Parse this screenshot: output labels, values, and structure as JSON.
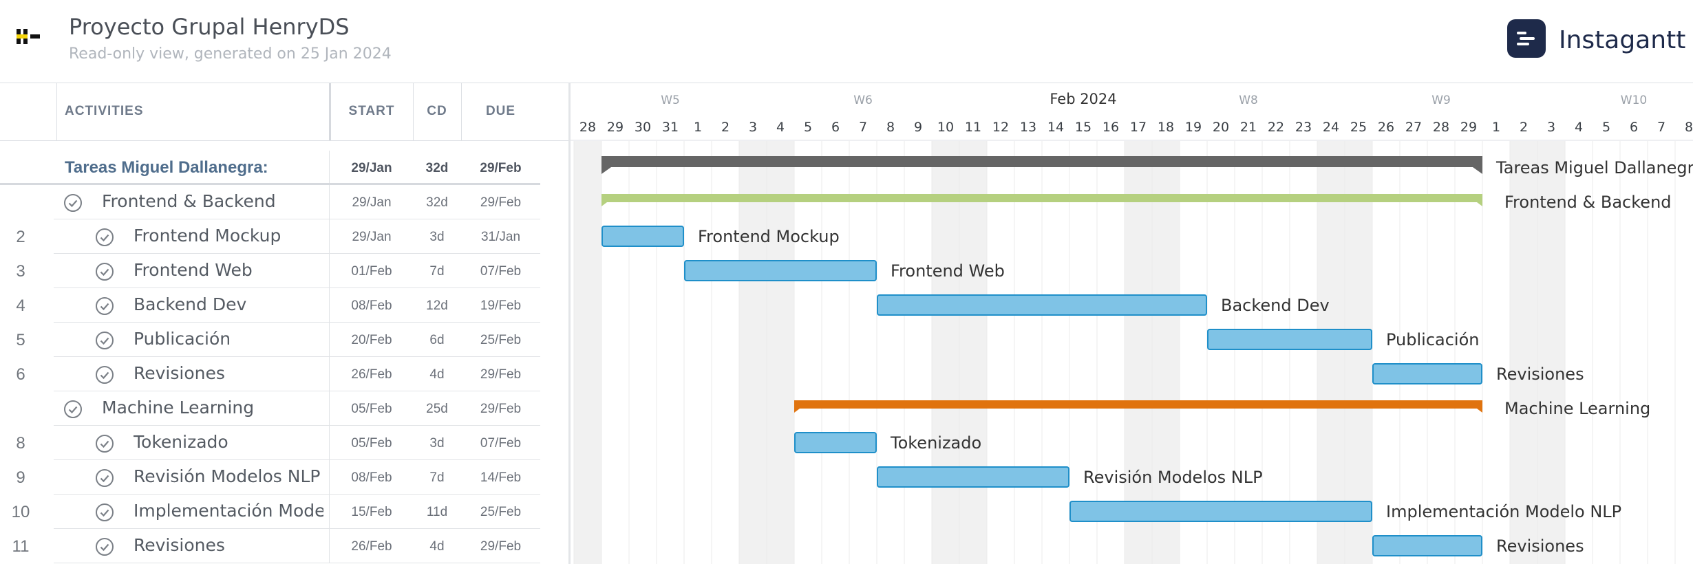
{
  "project": {
    "title": "Proyecto Grupal HenryDS",
    "subtitle": "Read-only view, generated on 25 Jan 2024"
  },
  "brand": {
    "name": "Instagantt"
  },
  "table": {
    "columns": [
      "ACTIVITIES",
      "START",
      "CD",
      "DUE"
    ],
    "rows": [
      {
        "num": "",
        "name": "Tareas Miguel Dallanegra:",
        "start": "29/Jan",
        "cd": "32d",
        "due": "29/Feb",
        "level": 0,
        "type": "group"
      },
      {
        "num": "",
        "name": "Frontend & Backend",
        "start": "29/Jan",
        "cd": "32d",
        "due": "29/Feb",
        "level": 1,
        "type": "subgroup"
      },
      {
        "num": "2",
        "name": "Frontend Mockup",
        "start": "29/Jan",
        "cd": "3d",
        "due": "31/Jan",
        "level": 2,
        "type": "task"
      },
      {
        "num": "3",
        "name": "Frontend Web",
        "start": "01/Feb",
        "cd": "7d",
        "due": "07/Feb",
        "level": 2,
        "type": "task"
      },
      {
        "num": "4",
        "name": "Backend Dev",
        "start": "08/Feb",
        "cd": "12d",
        "due": "19/Feb",
        "level": 2,
        "type": "task"
      },
      {
        "num": "5",
        "name": "Publicación",
        "start": "20/Feb",
        "cd": "6d",
        "due": "25/Feb",
        "level": 2,
        "type": "task"
      },
      {
        "num": "6",
        "name": "Revisiones",
        "start": "26/Feb",
        "cd": "4d",
        "due": "29/Feb",
        "level": 2,
        "type": "task"
      },
      {
        "num": "",
        "name": "Machine Learning",
        "start": "05/Feb",
        "cd": "25d",
        "due": "29/Feb",
        "level": 1,
        "type": "subgroup"
      },
      {
        "num": "8",
        "name": "Tokenizado",
        "start": "05/Feb",
        "cd": "3d",
        "due": "07/Feb",
        "level": 2,
        "type": "task"
      },
      {
        "num": "9",
        "name": "Revisión Modelos NLP",
        "start": "08/Feb",
        "cd": "7d",
        "due": "14/Feb",
        "level": 2,
        "type": "task"
      },
      {
        "num": "10",
        "name": "Implementación Model…",
        "start": "15/Feb",
        "cd": "11d",
        "due": "25/Feb",
        "level": 2,
        "type": "task"
      },
      {
        "num": "11",
        "name": "Revisiones",
        "start": "26/Feb",
        "cd": "4d",
        "due": "29/Feb",
        "level": 2,
        "type": "task"
      }
    ]
  },
  "timeline": {
    "month_label": "Feb 2024",
    "weeks": [
      {
        "label": "W5",
        "day_index": 3
      },
      {
        "label": "W6",
        "day_index": 10
      },
      {
        "label": "W8",
        "day_index": 24
      },
      {
        "label": "W9",
        "day_index": 31
      },
      {
        "label": "W10",
        "day_index": 38
      }
    ],
    "days": [
      "28",
      "29",
      "30",
      "31",
      "1",
      "2",
      "3",
      "4",
      "5",
      "6",
      "7",
      "8",
      "9",
      "10",
      "11",
      "12",
      "13",
      "14",
      "15",
      "16",
      "17",
      "18",
      "19",
      "20",
      "21",
      "22",
      "23",
      "24",
      "25",
      "26",
      "27",
      "28",
      "29",
      "1",
      "2",
      "3",
      "4",
      "5",
      "6",
      "7",
      "8"
    ],
    "weekend_day_indices": [
      0,
      6,
      7,
      13,
      14,
      20,
      21,
      27,
      28,
      34,
      35
    ]
  },
  "bars": [
    {
      "row": 0,
      "label": "Tareas Miguel Dallanegra:",
      "start_day": 1,
      "end_day": 33,
      "kind": "summary",
      "color": "#656565"
    },
    {
      "row": 1,
      "label": "Frontend & Backend",
      "start_day": 1,
      "end_day": 33,
      "kind": "subsummary",
      "color": "#b5d07f"
    },
    {
      "row": 2,
      "label": "Frontend Mockup",
      "start_day": 1,
      "end_day": 4,
      "kind": "task",
      "color": "#7fc3e6"
    },
    {
      "row": 3,
      "label": "Frontend Web",
      "start_day": 4,
      "end_day": 11,
      "kind": "task",
      "color": "#7fc3e6"
    },
    {
      "row": 4,
      "label": "Backend Dev",
      "start_day": 11,
      "end_day": 23,
      "kind": "task",
      "color": "#7fc3e6"
    },
    {
      "row": 5,
      "label": "Publicación",
      "start_day": 23,
      "end_day": 29,
      "kind": "task",
      "color": "#7fc3e6"
    },
    {
      "row": 6,
      "label": "Revisiones",
      "start_day": 29,
      "end_day": 33,
      "kind": "task",
      "color": "#7fc3e6"
    },
    {
      "row": 7,
      "label": "Machine Learning",
      "start_day": 8,
      "end_day": 33,
      "kind": "subsummary",
      "color": "#e0730e"
    },
    {
      "row": 8,
      "label": "Tokenizado",
      "start_day": 8,
      "end_day": 11,
      "kind": "task",
      "color": "#7fc3e6"
    },
    {
      "row": 9,
      "label": "Revisión Modelos NLP",
      "start_day": 11,
      "end_day": 18,
      "kind": "task",
      "color": "#7fc3e6"
    },
    {
      "row": 10,
      "label": "Implementación Modelo NLP",
      "start_day": 18,
      "end_day": 29,
      "kind": "task",
      "color": "#7fc3e6"
    },
    {
      "row": 11,
      "label": "Revisiones",
      "start_day": 29,
      "end_day": 33,
      "kind": "task",
      "color": "#7fc3e6"
    }
  ],
  "colors": {
    "task_fill": "#7fc3e6",
    "task_border": "#1f8fc9",
    "weekend_shade": "#f1f1f1",
    "grid_line": "#ebebeb",
    "brand": "#1e2a4a"
  }
}
